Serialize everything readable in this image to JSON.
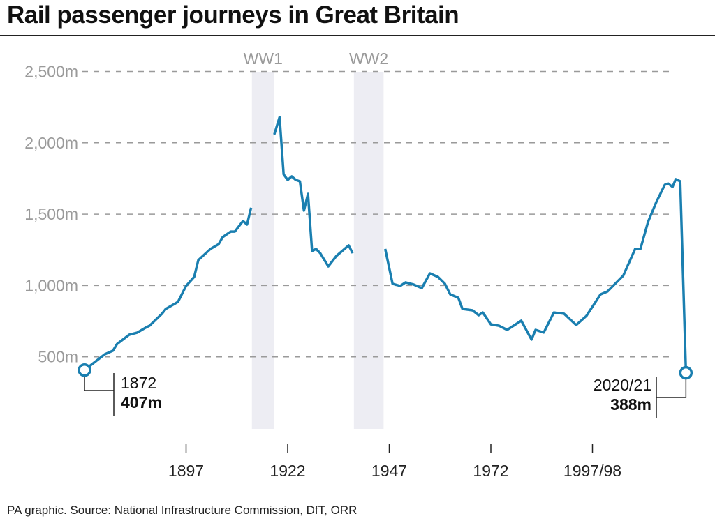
{
  "title": "Rail passenger journeys in Great Britain",
  "source": "PA graphic. Source: National Infrastructure Commission, DfT, ORR",
  "chart_data": {
    "type": "line",
    "title": "Rail passenger journeys in Great Britain",
    "xlabel": "",
    "ylabel": "",
    "ylim": [
      0,
      2500
    ],
    "xlim": [
      1872,
      2021
    ],
    "grid": true,
    "y_ticks": [
      {
        "value": 500,
        "label": "500m"
      },
      {
        "value": 1000,
        "label": "1,000m"
      },
      {
        "value": 1500,
        "label": "1,500m"
      },
      {
        "value": 2000,
        "label": "2,000m"
      },
      {
        "value": 2500,
        "label": "2,500m"
      }
    ],
    "x_ticks": [
      {
        "value": 1897,
        "label": "1897"
      },
      {
        "value": 1922,
        "label": "1922"
      },
      {
        "value": 1947,
        "label": "1947"
      },
      {
        "value": 1972,
        "label": "1972"
      },
      {
        "value": 1997,
        "label": "1997/98"
      }
    ],
    "shaded_periods": [
      {
        "label": "WW1",
        "from": 1913.2,
        "to": 1918.7
      },
      {
        "label": "WW2",
        "from": 1938.3,
        "to": 1945.6
      }
    ],
    "color": "#1a7fb0",
    "segments": [
      [
        [
          1872,
          407
        ],
        [
          1877,
          518
        ],
        [
          1879,
          543
        ],
        [
          1880,
          590
        ],
        [
          1883,
          655
        ],
        [
          1885,
          670
        ],
        [
          1887,
          704
        ],
        [
          1888,
          718
        ],
        [
          1891,
          800
        ],
        [
          1892,
          836
        ],
        [
          1895,
          885
        ],
        [
          1897,
          997
        ],
        [
          1899,
          1060
        ],
        [
          1900,
          1178
        ],
        [
          1903,
          1256
        ],
        [
          1905,
          1290
        ],
        [
          1906,
          1339
        ],
        [
          1908,
          1378
        ],
        [
          1909,
          1378
        ],
        [
          1911,
          1452
        ],
        [
          1912,
          1427
        ],
        [
          1913,
          1545
        ]
      ],
      [
        [
          1918.7,
          2058
        ],
        [
          1920,
          2180
        ],
        [
          1921,
          1779
        ],
        [
          1922,
          1740
        ],
        [
          1923,
          1765
        ],
        [
          1924,
          1740
        ],
        [
          1925,
          1730
        ],
        [
          1926,
          1525
        ],
        [
          1927,
          1642
        ],
        [
          1928,
          1242
        ],
        [
          1929,
          1256
        ],
        [
          1930,
          1227
        ],
        [
          1932,
          1134
        ],
        [
          1934,
          1207
        ],
        [
          1937,
          1281
        ],
        [
          1938,
          1227
        ]
      ],
      [
        [
          1946,
          1256
        ],
        [
          1947.8,
          1012
        ],
        [
          1949.7,
          997
        ],
        [
          1951,
          1022
        ],
        [
          1953,
          1007
        ],
        [
          1955,
          982
        ],
        [
          1957,
          1085
        ],
        [
          1959,
          1060
        ],
        [
          1960.7,
          1012
        ],
        [
          1962,
          938
        ],
        [
          1964,
          914
        ],
        [
          1965,
          836
        ],
        [
          1967.5,
          826
        ],
        [
          1969,
          792
        ],
        [
          1970,
          811
        ],
        [
          1972,
          728
        ],
        [
          1974,
          718
        ],
        [
          1976,
          689
        ],
        [
          1979.5,
          753
        ],
        [
          1982,
          621
        ],
        [
          1983,
          689
        ],
        [
          1985,
          670
        ],
        [
          1987.5,
          811
        ],
        [
          1990,
          802
        ],
        [
          1993,
          723
        ],
        [
          1995.5,
          787
        ],
        [
          1999,
          938
        ],
        [
          2000.7,
          958
        ],
        [
          2004.6,
          1070
        ],
        [
          2007.5,
          1256
        ],
        [
          2008.8,
          1256
        ],
        [
          2010.7,
          1447
        ],
        [
          2012.7,
          1584
        ],
        [
          2014.8,
          1706
        ],
        [
          2015.6,
          1715
        ],
        [
          2016.7,
          1691
        ],
        [
          2017.5,
          1745
        ],
        [
          2018.6,
          1730
        ],
        [
          2020,
          388
        ]
      ]
    ],
    "annotations": [
      {
        "year": 1872,
        "value": 407,
        "label": "1872",
        "value_label": "407m"
      },
      {
        "year": 2020,
        "value": 388,
        "label": "2020/21",
        "value_label": "388m"
      }
    ]
  }
}
